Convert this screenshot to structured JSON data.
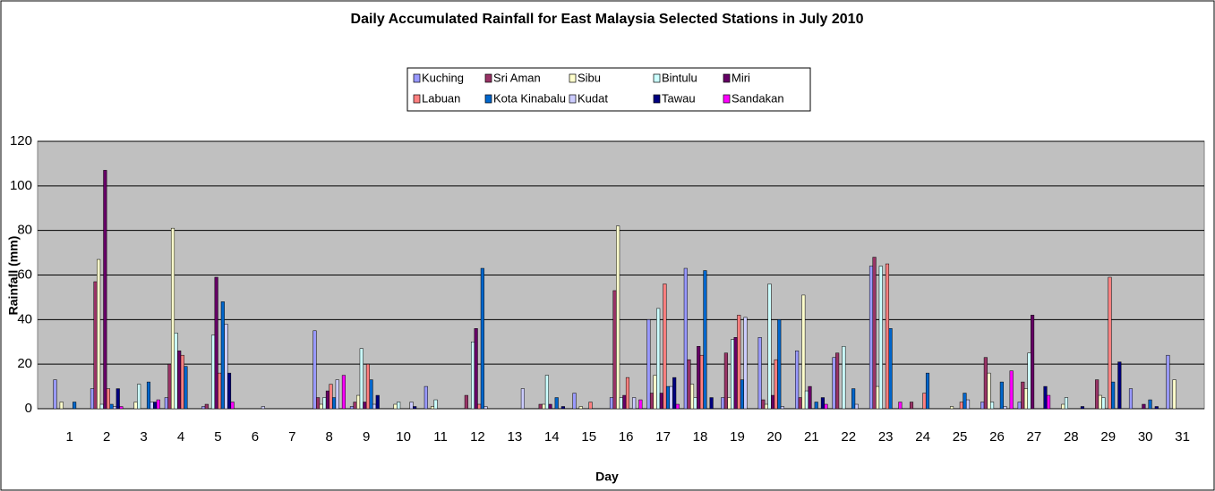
{
  "chart_data": {
    "type": "bar",
    "title": "Daily Accumulated Rainfall for East Malaysia Selected Stations in July 2010",
    "x_label": "Day",
    "y_label": "Rainfall (mm)",
    "categories": [
      "1",
      "2",
      "3",
      "4",
      "5",
      "6",
      "7",
      "8",
      "9",
      "10",
      "11",
      "12",
      "13",
      "14",
      "15",
      "16",
      "17",
      "18",
      "19",
      "20",
      "21",
      "22",
      "23",
      "24",
      "25",
      "26",
      "27",
      "28",
      "29",
      "30",
      "31"
    ],
    "series": [
      {
        "name": "Kuching",
        "color": "#9999ff",
        "values": [
          13,
          9,
          0,
          5,
          1,
          0,
          0,
          35,
          1,
          0,
          10,
          0,
          0,
          0,
          7,
          5,
          40,
          63,
          5,
          32,
          26,
          23,
          64,
          0,
          0,
          3,
          3,
          0,
          0,
          9,
          24
        ]
      },
      {
        "name": "Sri Aman",
        "color": "#993366",
        "values": [
          0,
          57,
          0,
          20,
          2,
          0,
          0,
          5,
          3,
          0,
          0,
          6,
          0,
          2,
          0,
          53,
          7,
          22,
          25,
          4,
          5,
          25,
          68,
          3,
          0,
          23,
          12,
          0,
          13,
          0,
          0
        ]
      },
      {
        "name": "Sibu",
        "color": "#ffffcc",
        "values": [
          3,
          67,
          3,
          81,
          0,
          0,
          0,
          2,
          6,
          2,
          1,
          0,
          0,
          2,
          1,
          82,
          15,
          11,
          5,
          2,
          51,
          0,
          10,
          0,
          1,
          16,
          9,
          2,
          6,
          0,
          13
        ]
      },
      {
        "name": "Bintulu",
        "color": "#ccffff",
        "values": [
          0,
          2,
          11,
          34,
          33,
          0,
          0,
          5,
          27,
          3,
          4,
          30,
          0,
          15,
          0,
          5,
          45,
          5,
          31,
          56,
          8,
          28,
          64,
          0,
          0,
          3,
          25,
          5,
          5,
          0,
          0
        ]
      },
      {
        "name": "Miri",
        "color": "#660066",
        "values": [
          0,
          107,
          0,
          26,
          59,
          0,
          0,
          8,
          3,
          0,
          0,
          36,
          0,
          2,
          0,
          6,
          7,
          28,
          32,
          6,
          10,
          0,
          0,
          0,
          0,
          0,
          42,
          0,
          0,
          2,
          0
        ]
      },
      {
        "name": "Labuan",
        "color": "#ff8080",
        "values": [
          0,
          9,
          0,
          24,
          16,
          0,
          0,
          11,
          20,
          0,
          0,
          2,
          0,
          0,
          3,
          14,
          56,
          24,
          42,
          22,
          0,
          0,
          65,
          7,
          3,
          0,
          0,
          0,
          59,
          0,
          0
        ]
      },
      {
        "name": "Kota Kinabalu",
        "color": "#0066cc",
        "values": [
          3,
          2,
          12,
          19,
          48,
          0,
          0,
          5,
          13,
          0,
          0,
          63,
          0,
          5,
          0,
          0,
          10,
          62,
          13,
          40,
          3,
          9,
          36,
          16,
          7,
          12,
          0,
          0,
          12,
          4,
          0
        ]
      },
      {
        "name": "Kudat",
        "color": "#ccccff",
        "values": [
          0,
          1,
          3,
          0,
          38,
          1,
          0,
          13,
          2,
          3,
          0,
          1,
          9,
          0,
          0,
          5,
          10,
          0,
          41,
          1,
          0,
          2,
          0,
          0,
          4,
          1,
          0,
          0,
          0,
          0,
          0
        ]
      },
      {
        "name": "Tawau",
        "color": "#000080",
        "values": [
          0,
          9,
          3,
          0,
          16,
          0,
          0,
          0,
          6,
          1,
          0,
          0,
          0,
          1,
          0,
          0,
          14,
          5,
          0,
          0,
          5,
          0,
          0,
          0,
          0,
          0,
          10,
          1,
          21,
          1,
          0
        ]
      },
      {
        "name": "Sandakan",
        "color": "#ff00ff",
        "values": [
          0,
          1,
          4,
          0,
          3,
          0,
          0,
          15,
          0,
          0,
          0,
          0,
          0,
          0,
          0,
          4,
          2,
          0,
          0,
          0,
          2,
          0,
          3,
          0,
          0,
          17,
          6,
          0,
          0,
          0,
          0
        ]
      }
    ],
    "ylim": [
      0,
      120
    ],
    "yticks": [
      0,
      20,
      40,
      60,
      80,
      100,
      120
    ],
    "grid": true
  }
}
